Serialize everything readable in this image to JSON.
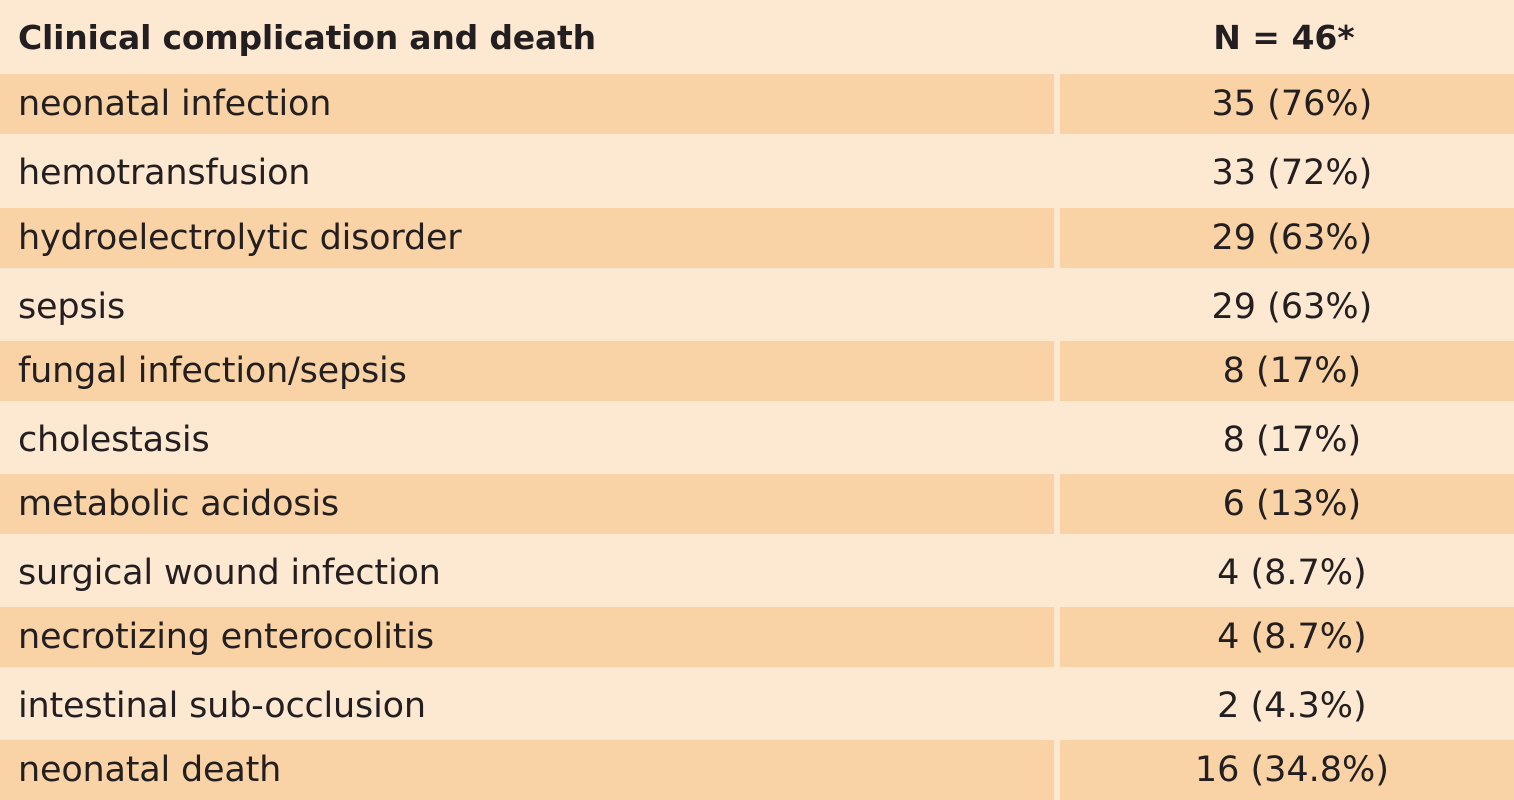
{
  "table": {
    "header": {
      "label": "Clinical complication and death",
      "value": "N = 46*"
    },
    "rows": [
      {
        "label": "neonatal infection",
        "value": "35 (76%)"
      },
      {
        "label": "hemotransfusion",
        "value": "33 (72%)"
      },
      {
        "label": "hydroelectrolytic disorder",
        "value": "29 (63%)"
      },
      {
        "label": "sepsis",
        "value": "29 (63%)"
      },
      {
        "label": "fungal infection/sepsis",
        "value": "8 (17%)"
      },
      {
        "label": "cholestasis",
        "value": "8 (17%)"
      },
      {
        "label": "metabolic acidosis",
        "value": "6 (13%)"
      },
      {
        "label": "surgical wound infection",
        "value": "4 (8.7%)"
      },
      {
        "label": "necrotizing enterocolitis",
        "value": "4 (8.7%)"
      },
      {
        "label": "intestinal sub-occlusion",
        "value": "2 (4.3%)"
      },
      {
        "label": "neonatal death",
        "value": "16 (34.8%)"
      }
    ]
  }
}
